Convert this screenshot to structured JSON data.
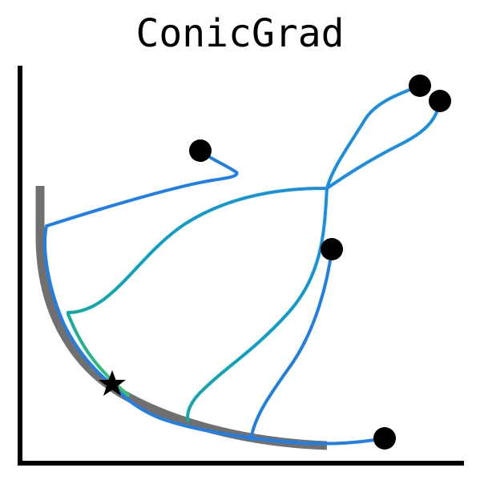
{
  "title": "ConicGrad",
  "colors": {
    "background": "#ffffff",
    "axes": "#000000",
    "constraint_curve": "#707070",
    "trajectory_blue": "#1f7fe6",
    "trajectory_cyan": "#0aa0c8",
    "trajectory_teal": "#12a9a0",
    "trajectory_green": "#3cc66a",
    "start_marker": "#000000",
    "optimum_marker": "#000000"
  },
  "markers": {
    "start_points": 5,
    "optimum_symbol": "star"
  }
}
